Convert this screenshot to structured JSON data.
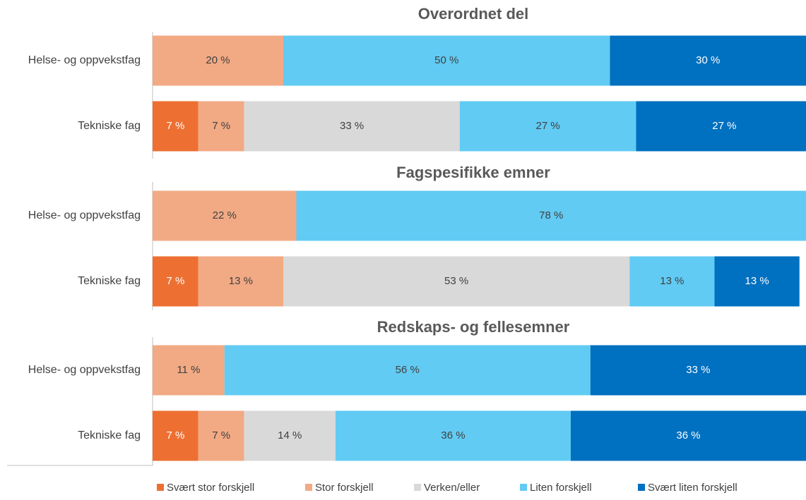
{
  "chart_data": [
    {
      "type": "bar",
      "title": "Overordnet del",
      "orientation": "horizontal",
      "stacked": true,
      "categories": [
        "Helse- og oppvekstfag",
        "Tekniske fag"
      ],
      "xlim": [
        0,
        100
      ],
      "series": [
        {
          "name": "Svært stor forskjell",
          "color": "#ED7032",
          "values": [
            null,
            7
          ],
          "value_labels": [
            null,
            "7 %"
          ]
        },
        {
          "name": "Stor forskjell",
          "color": "#F2AA84",
          "values": [
            20,
            7
          ],
          "value_labels": [
            "20 %",
            "7 %"
          ]
        },
        {
          "name": "Verken/eller",
          "color": "#D9D9D9",
          "values": [
            null,
            33
          ],
          "value_labels": [
            null,
            "33 %"
          ]
        },
        {
          "name": "Liten forskjell",
          "color": "#61CBF3",
          "values": [
            50,
            27
          ],
          "value_labels": [
            "50 %",
            "27 %"
          ]
        },
        {
          "name": "Svært liten forskjell",
          "color": "#0070C0",
          "values": [
            30,
            27
          ],
          "value_labels": [
            "30 %",
            "27 %"
          ]
        }
      ]
    },
    {
      "type": "bar",
      "title": "Fagspesifikke emner",
      "orientation": "horizontal",
      "stacked": true,
      "categories": [
        "Helse- og oppvekstfag",
        "Tekniske fag"
      ],
      "xlim": [
        0,
        100
      ],
      "series": [
        {
          "name": "Svært stor forskjell",
          "color": "#ED7032",
          "values": [
            null,
            7
          ],
          "value_labels": [
            null,
            "7 %"
          ]
        },
        {
          "name": "Stor forskjell",
          "color": "#F2AA84",
          "values": [
            22,
            13
          ],
          "value_labels": [
            "22 %",
            "13 %"
          ]
        },
        {
          "name": "Verken/eller",
          "color": "#D9D9D9",
          "values": [
            null,
            53
          ],
          "value_labels": [
            null,
            "53 %"
          ]
        },
        {
          "name": "Liten forskjell",
          "color": "#61CBF3",
          "values": [
            78,
            13
          ],
          "value_labels": [
            "78 %",
            "13 %"
          ]
        },
        {
          "name": "Svært liten forskjell",
          "color": "#0070C0",
          "values": [
            null,
            13
          ],
          "value_labels": [
            null,
            "13 %"
          ]
        }
      ]
    },
    {
      "type": "bar",
      "title": "Redskaps- og fellesemner",
      "orientation": "horizontal",
      "stacked": true,
      "categories": [
        "Helse- og oppvekstfag",
        "Tekniske fag"
      ],
      "xlim": [
        0,
        100
      ],
      "series": [
        {
          "name": "Svært stor forskjell",
          "color": "#ED7032",
          "values": [
            null,
            7
          ],
          "value_labels": [
            null,
            "7 %"
          ]
        },
        {
          "name": "Stor forskjell",
          "color": "#F2AA84",
          "values": [
            11,
            7
          ],
          "value_labels": [
            "11 %",
            "7 %"
          ]
        },
        {
          "name": "Verken/eller",
          "color": "#D9D9D9",
          "values": [
            null,
            14
          ],
          "value_labels": [
            null,
            "14 %"
          ]
        },
        {
          "name": "Liten forskjell",
          "color": "#61CBF3",
          "values": [
            56,
            36
          ],
          "value_labels": [
            "56 %",
            "36 %"
          ]
        },
        {
          "name": "Svært liten forskjell",
          "color": "#0070C0",
          "values": [
            33,
            36
          ],
          "value_labels": [
            "33 %",
            "36 %"
          ]
        }
      ]
    }
  ]
}
